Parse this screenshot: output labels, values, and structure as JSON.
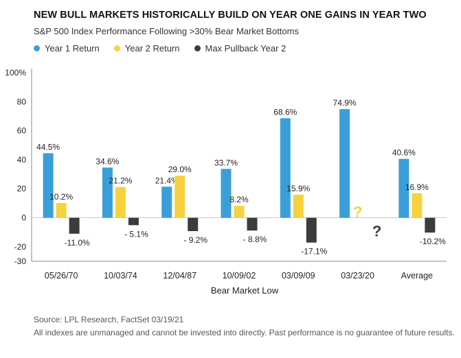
{
  "title": "NEW BULL MARKETS HISTORICALLY BUILD ON YEAR ONE GAINS IN YEAR TWO",
  "subtitle": "S&P 500 Index Performance Following >30% Bear Market Bottoms",
  "colors": {
    "year1": "#3a9fd8",
    "year2": "#f7d23e",
    "pullback": "#3c3c3c",
    "axis": "#888888",
    "text": "#231f20"
  },
  "legend": [
    {
      "label": "Year 1 Return",
      "color": "#3a9fd8"
    },
    {
      "label": "Year 2 Return",
      "color": "#f7d23e"
    },
    {
      "label": "Max Pullback Year 2",
      "color": "#3c3c3c"
    }
  ],
  "footer": {
    "source": "Source: LPL Research, FactSet   03/19/21",
    "disclaimer": "All indexes are unmanaged and cannot be invested into directly. Past performance is no guarantee of future results."
  },
  "chart_data": {
    "type": "bar",
    "xlabel": "Bear Market Low",
    "ylabel": "",
    "ylim": [
      -30,
      100
    ],
    "yticks": [
      100,
      80,
      60,
      40,
      20,
      0,
      -20,
      -30
    ],
    "ytick_labels": [
      "100%",
      "80",
      "60",
      "40",
      "20",
      "0",
      "-20",
      "-30"
    ],
    "categories": [
      "05/26/70",
      "10/03/74",
      "12/04/87",
      "10/09/02",
      "03/09/09",
      "03/23/20",
      "Average"
    ],
    "series": [
      {
        "name": "Year 1 Return",
        "values": [
          44.5,
          34.6,
          21.4,
          33.7,
          68.6,
          74.9,
          40.6
        ],
        "labels": [
          "44.5%",
          "34.6%",
          "21.4%",
          "33.7%",
          "68.6%",
          "74.9%",
          "40.6%"
        ]
      },
      {
        "name": "Year 2 Return",
        "values": [
          10.2,
          21.2,
          29.0,
          8.2,
          15.9,
          null,
          16.9
        ],
        "labels": [
          "10.2%",
          "21.2%",
          "29.0%",
          "8.2%",
          "15.9%",
          "?",
          "16.9%"
        ]
      },
      {
        "name": "Max Pullback Year 2",
        "values": [
          -11.0,
          -5.1,
          -9.2,
          -8.8,
          -17.1,
          null,
          -10.2
        ],
        "labels": [
          "-11.0%",
          "- 5.1%",
          "- 9.2%",
          "- 8.8%",
          "-17.1%",
          "?",
          "-10.2%"
        ]
      }
    ],
    "grid": false,
    "legend_position": "top-left"
  }
}
